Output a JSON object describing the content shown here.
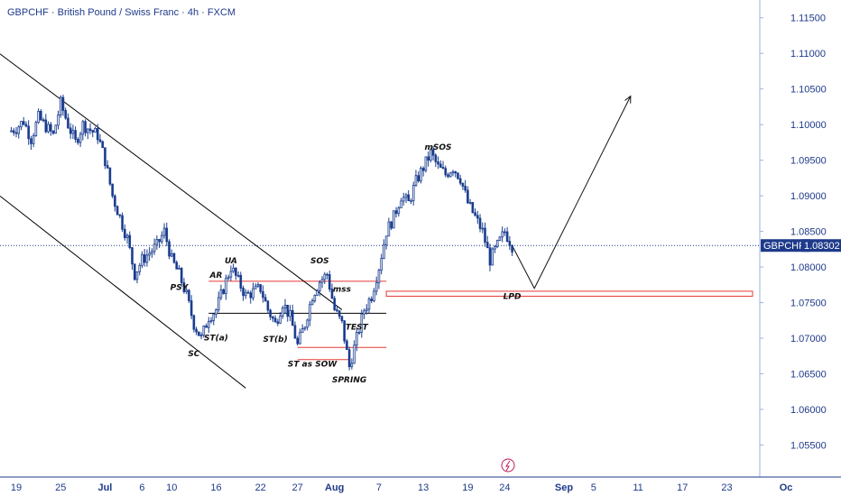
{
  "header": {
    "title": "GBPCHF · British Pound / Swiss Franc · 4h · FXCM"
  },
  "colors": {
    "candle": "#1a3d8f",
    "axis_text": "#1e3a8a",
    "zone": "#e53935",
    "price_line": "#1e3a8a",
    "trendline": "#000000"
  },
  "chart_data": {
    "type": "candlestick",
    "symbol": "GBPCHF",
    "timeframe": "4h",
    "ylim": [
      1.0505,
      1.1175
    ],
    "y_ticks": [
      "1.11500",
      "1.11000",
      "1.10500",
      "1.10000",
      "1.09500",
      "1.09000",
      "1.08500",
      "1.08000",
      "1.07500",
      "1.07000",
      "1.06500",
      "1.06000",
      "1.05500"
    ],
    "x_ticks": [
      "19",
      "25",
      "Jul",
      "6",
      "10",
      "16",
      "22",
      "27",
      "Aug",
      "7",
      "13",
      "19",
      "24",
      "Sep",
      "5",
      "11",
      "17",
      "23",
      "Oc"
    ],
    "current_price": {
      "symbol": "GBPCHF",
      "value": "1.08302"
    },
    "price_path": [
      [
        "Jun 18",
        1.099
      ],
      [
        "Jun 19",
        1.0995
      ],
      [
        "Jun 20",
        1.1005
      ],
      [
        "Jun 21",
        1.098
      ],
      [
        "Jun 22",
        1.101
      ],
      [
        "Jun 24",
        1.0985
      ],
      [
        "Jun 25",
        1.103
      ],
      [
        "Jun 26",
        1.1
      ],
      [
        "Jun 27",
        1.0975
      ],
      [
        "Jun 28",
        1.1
      ],
      [
        "Jun 30",
        1.0985
      ],
      [
        "Jul 1",
        1.095
      ],
      [
        "Jul 2",
        1.09
      ],
      [
        "Jul 3",
        1.087
      ],
      [
        "Jul 4",
        1.084
      ],
      [
        "Jul 5",
        1.079
      ],
      [
        "Jul 6",
        1.081
      ],
      [
        "Jul 8",
        1.083
      ],
      [
        "Jul 9",
        1.085
      ],
      [
        "Jul 10",
        1.081
      ],
      [
        "Jul 11",
        1.079
      ],
      [
        "Jul 12",
        1.076
      ],
      [
        "Jul 13",
        1.072
      ],
      [
        "Jul 14",
        1.07
      ],
      [
        "Jul 15",
        1.073
      ],
      [
        "Jul 16",
        1.074
      ],
      [
        "Jul 17",
        1.077
      ],
      [
        "Jul 18",
        1.08
      ],
      [
        "Jul 19",
        1.078
      ],
      [
        "Jul 20",
        1.076
      ],
      [
        "Jul 22",
        1.077
      ],
      [
        "Jul 23",
        1.074
      ],
      [
        "Jul 24",
        1.072
      ],
      [
        "Jul 25",
        1.075
      ],
      [
        "Jul 26",
        1.073
      ],
      [
        "Jul 27",
        1.069
      ],
      [
        "Jul 28",
        1.072
      ],
      [
        "Jul 29",
        1.076
      ],
      [
        "Jul 30",
        1.078
      ],
      [
        "Jul 31",
        1.079
      ],
      [
        "Aug 1",
        1.074
      ],
      [
        "Aug 2",
        1.072
      ],
      [
        "Aug 3",
        1.066
      ],
      [
        "Aug 4",
        1.07
      ],
      [
        "Aug 5",
        1.074
      ],
      [
        "Aug 6",
        1.076
      ],
      [
        "Aug 7",
        1.08
      ],
      [
        "Aug 8",
        1.085
      ],
      [
        "Aug 9",
        1.087
      ],
      [
        "Aug 10",
        1.09
      ],
      [
        "Aug 11",
        1.089
      ],
      [
        "Aug 12",
        1.092
      ],
      [
        "Aug 13",
        1.094
      ],
      [
        "Aug 14",
        1.096
      ],
      [
        "Aug 15",
        1.094
      ],
      [
        "Aug 16",
        1.093
      ],
      [
        "Aug 17",
        1.094
      ],
      [
        "Aug 18",
        1.0925
      ],
      [
        "Aug 19",
        1.089
      ],
      [
        "Aug 20",
        1.087
      ],
      [
        "Aug 21",
        1.085
      ],
      [
        "Aug 22",
        1.081
      ],
      [
        "Aug 23",
        1.083
      ],
      [
        "Aug 24",
        1.085
      ],
      [
        "Aug 25",
        1.083
      ]
    ],
    "projection": [
      [
        "Aug 25",
        1.083
      ],
      [
        "Aug 28",
        1.077
      ],
      [
        "Sep 10",
        1.104
      ]
    ],
    "annotations": [
      {
        "text": "mSOS",
        "date": "Aug 15",
        "price": 1.0965
      },
      {
        "text": "SOS",
        "date": "Jul 30",
        "price": 1.0805
      },
      {
        "text": "UA",
        "date": "Jul 18",
        "price": 1.0805
      },
      {
        "text": "AR",
        "date": "Jul 16",
        "price": 1.0785
      },
      {
        "text": "PSY",
        "date": "Jul 11",
        "price": 1.0768
      },
      {
        "text": "mss",
        "date": "Aug 2",
        "price": 1.0765
      },
      {
        "text": "LPD",
        "date": "Aug 25",
        "price": 1.0755
      },
      {
        "text": "TEST",
        "date": "Aug 4",
        "price": 1.0712
      },
      {
        "text": "ST(a)",
        "date": "Jul 16",
        "price": 1.0697
      },
      {
        "text": "ST(b)",
        "date": "Jul 24",
        "price": 1.0695
      },
      {
        "text": "SC",
        "date": "Jul 13",
        "price": 1.0675
      },
      {
        "text": "ST as SOW",
        "date": "Jul 29",
        "price": 1.066
      },
      {
        "text": "SPRING",
        "date": "Aug 3",
        "price": 1.0638
      }
    ],
    "zones": [
      {
        "name": "upper-range",
        "price": 1.078,
        "from": "Jul 15",
        "to": "Aug 8"
      },
      {
        "name": "lpd-zone",
        "top": 1.0766,
        "bottom": 1.0759,
        "from": "Aug 8",
        "to": "Oct 1"
      },
      {
        "name": "lower-range",
        "price": 1.0687,
        "from": "Jul 27",
        "to": "Aug 8"
      },
      {
        "name": "st-sow",
        "price": 1.067,
        "from": "Jul 27",
        "to": "Aug 3"
      }
    ],
    "trendlines": [
      {
        "name": "channel-upper",
        "from": [
          "Jun 18",
          1.109
        ],
        "to": [
          "Aug 2",
          1.074
        ]
      },
      {
        "name": "channel-lower",
        "from": [
          "Jun 18",
          1.089
        ],
        "to": [
          "Jul 20",
          1.063
        ]
      },
      {
        "name": "mss-line",
        "from": [
          "Jul 15",
          1.0735
        ],
        "to": [
          "Aug 8",
          1.0735
        ]
      }
    ]
  }
}
